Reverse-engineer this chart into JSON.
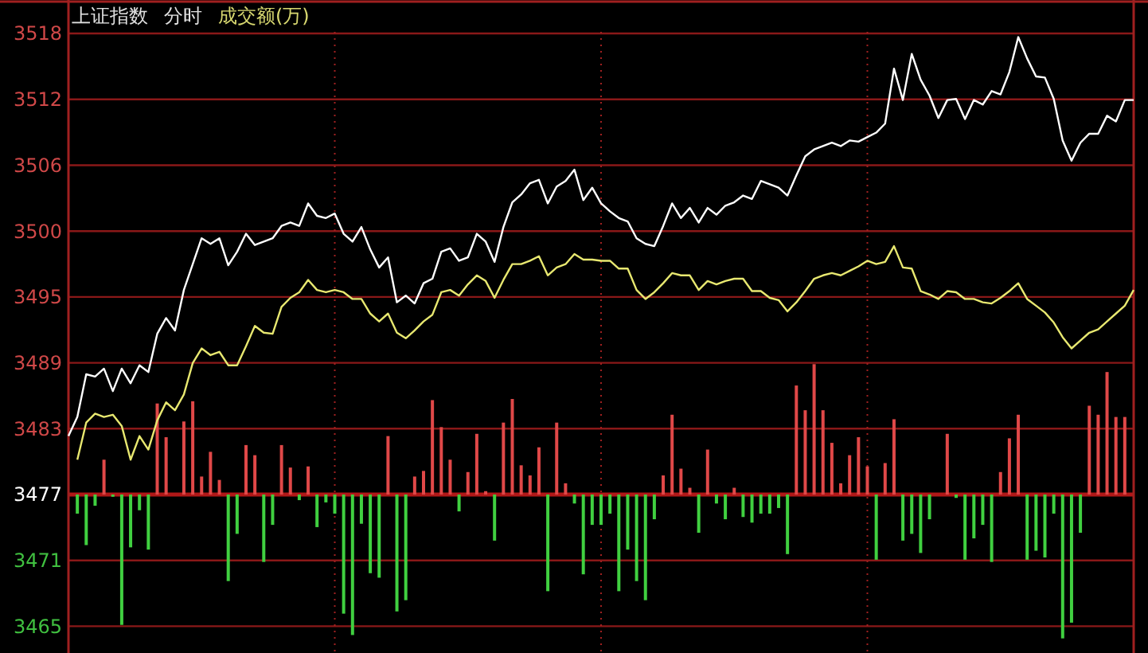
{
  "chart_data": {
    "type": "line",
    "title": "上证指数",
    "subtitle": "分时",
    "annotations": [
      "成交额(万)"
    ],
    "categories": [
      null,
      null,
      null,
      null,
      null,
      null,
      null,
      null,
      null,
      null,
      null,
      null,
      null,
      null,
      null,
      null,
      null,
      null,
      null,
      null,
      null,
      null,
      null,
      null,
      null,
      null,
      null,
      null,
      null,
      null,
      null,
      null,
      null,
      null,
      null,
      null,
      null,
      null,
      null,
      null,
      null,
      null,
      null,
      null,
      null,
      null,
      null,
      null,
      null,
      null,
      null,
      null,
      null,
      null,
      null,
      null,
      null,
      null,
      null,
      null,
      null,
      null,
      null,
      null,
      null,
      null,
      null,
      null,
      null,
      null,
      null,
      null,
      null,
      null,
      null,
      null,
      null,
      null,
      null,
      null,
      null,
      null,
      null,
      null,
      null,
      null,
      null,
      null,
      null,
      null,
      null,
      null,
      null,
      null,
      null,
      null,
      null,
      null,
      null,
      null,
      null,
      null,
      null,
      null,
      null,
      null,
      null,
      null,
      null,
      null,
      null,
      null,
      null,
      null,
      null,
      null,
      null,
      null,
      null,
      null,
      null
    ],
    "ylim": [
      3462.9,
      3521
    ],
    "yticks": [
      {
        "value": 3465.28,
        "label": "3465"
      },
      {
        "value": 3471.14,
        "label": "3471"
      },
      {
        "value": 3477,
        "label": "3477"
      },
      {
        "value": 3482.86,
        "label": "3483"
      },
      {
        "value": 3488.72,
        "label": "3489"
      },
      {
        "value": 3494.58,
        "label": "3495"
      },
      {
        "value": 3500.44,
        "label": "3500"
      },
      {
        "value": 3506.3,
        "label": "3506"
      },
      {
        "value": 3512.16,
        "label": "3512"
      },
      {
        "value": 3518.02,
        "label": "3518"
      }
    ],
    "tick_labels": "y",
    "grid": true,
    "ref_lines": [
      {
        "axis": "y",
        "value": 3477,
        "color": "#b01818"
      }
    ],
    "series": [
      {
        "type": "bar",
        "values": [
          null,
          -1.7,
          -4.5,
          -1.0,
          3.1,
          -0.2,
          -11.6,
          -4.7,
          -1.4,
          -4.9,
          8.1,
          5.1,
          null,
          6.5,
          8.3,
          1.6,
          3.8,
          1.3,
          -7.7,
          -3.5,
          4.4,
          3.5,
          -6.0,
          -2.7,
          4.4,
          2.4,
          -0.5,
          2.5,
          -2.9,
          -0.7,
          -1.7,
          -10.6,
          -12.5,
          -2.6,
          -7.0,
          -7.4,
          5.2,
          -10.4,
          -9.4,
          1.6,
          2.1,
          8.4,
          6.0,
          3.1,
          -1.5,
          2.0,
          5.4,
          0.3,
          -4.1,
          6.4,
          8.5,
          2.6,
          1.7,
          4.2,
          -8.6,
          6.4,
          1.0,
          -0.8,
          -7.1,
          -2.7,
          -2.7,
          -1.7,
          -8.6,
          -4.9,
          -7.7,
          -9.4,
          -2.2,
          1.7,
          7.1,
          2.3,
          0.6,
          -3.4,
          4.0,
          -0.8,
          -2.2,
          0.6,
          -2.0,
          -2.5,
          -1.7,
          -1.7,
          -1.2,
          -5.3,
          9.7,
          7.5,
          11.6,
          7.5,
          4.6,
          1.0,
          3.5,
          5.1,
          2.5,
          -5.8,
          2.8,
          6.7,
          -4.1,
          -3.5,
          -5.2,
          -2.2,
          null,
          5.4,
          -0.3,
          -5.8,
          -3.9,
          -2.7,
          -6.0,
          2.0,
          5.0,
          7.1,
          -5.8,
          -5.0,
          -5.6,
          -1.7,
          -12.8,
          -11.4,
          -3.4,
          7.9,
          7.1,
          10.9,
          6.9,
          6.9,
          null
        ],
        "colors": [
          null,
          "#40d040",
          "#40d040",
          "#40d040",
          "#e04848",
          "#40d040",
          "#40d040",
          "#40d040",
          "#40d040",
          "#40d040",
          "#e04848",
          "#e04848",
          null,
          "#e04848",
          "#e04848",
          "#e04848",
          "#e04848",
          "#e04848",
          "#40d040",
          "#40d040",
          "#e04848",
          "#e04848",
          "#40d040",
          "#40d040",
          "#e04848",
          "#e04848",
          "#40d040",
          "#e04848",
          "#40d040",
          "#40d040",
          "#40d040",
          "#40d040",
          "#40d040",
          "#40d040",
          "#40d040",
          "#40d040",
          "#e04848",
          "#40d040",
          "#40d040",
          "#e04848",
          "#e04848",
          "#e04848",
          "#e04848",
          "#e04848",
          "#40d040",
          "#e04848",
          "#e04848",
          "#e04848",
          "#40d040",
          "#e04848",
          "#e04848",
          "#e04848",
          "#e04848",
          "#e04848",
          "#40d040",
          "#e04848",
          "#e04848",
          "#40d040",
          "#40d040",
          "#40d040",
          "#40d040",
          "#40d040",
          "#40d040",
          "#40d040",
          "#40d040",
          "#40d040",
          "#40d040",
          "#e04848",
          "#e04848",
          "#e04848",
          "#e04848",
          "#40d040",
          "#e04848",
          "#40d040",
          "#40d040",
          "#e04848",
          "#40d040",
          "#40d040",
          "#40d040",
          "#40d040",
          "#40d040",
          "#40d040",
          "#e04848",
          "#e04848",
          "#e04848",
          "#e04848",
          "#e04848",
          "#e04848",
          "#e04848",
          "#e04848",
          "#e04848",
          "#40d040",
          "#e04848",
          "#e04848",
          "#40d040",
          "#40d040",
          "#40d040",
          "#40d040",
          null,
          "#e04848",
          "#40d040",
          "#40d040",
          "#40d040",
          "#40d040",
          "#40d040",
          "#e04848",
          "#e04848",
          "#e04848",
          "#40d040",
          "#40d040",
          "#40d040",
          "#40d040",
          "#40d040",
          "#40d040",
          "#40d040",
          "#e04848",
          "#e04848",
          "#e04848",
          "#e04848",
          "#e04848",
          null
        ],
        "base": [
          null,
          3477,
          3477,
          3477,
          3477,
          3477,
          3477,
          3477,
          3477,
          3477,
          3477,
          3477,
          null,
          3477,
          3477,
          3477,
          3477,
          3477,
          3477,
          3477,
          3477,
          3477,
          3477,
          3477,
          3477,
          3477,
          3477,
          3477,
          3477,
          3477,
          3477,
          3477,
          3477,
          3477,
          3477,
          3477,
          3477,
          3477,
          3477,
          3477,
          3477,
          3477,
          3477,
          3477,
          3477,
          3477,
          3477,
          3477,
          3477,
          3477,
          3477,
          3477,
          3477,
          3477,
          3477,
          3477,
          3477,
          3477,
          3477,
          3477,
          3477,
          3477,
          3477,
          3477,
          3477,
          3477,
          3477,
          3477,
          3477,
          3477,
          3477,
          3477,
          3477,
          3477,
          3477,
          3477,
          3477,
          3477,
          3477,
          3477,
          3477,
          3477,
          3477,
          3477,
          3477,
          3477,
          3477,
          3477,
          3477,
          3477,
          3477,
          3477,
          3477,
          3477,
          3477,
          3477,
          3477,
          3477,
          null,
          3477,
          3477,
          3477,
          3477,
          3477,
          3477,
          3477,
          3477,
          3477,
          3477,
          3477,
          3477,
          3477,
          3477,
          3477,
          3477,
          3477,
          3477,
          3477,
          3477,
          3477,
          null
        ]
      },
      {
        "color": "#ffffff",
        "values": [
          3482.2,
          3483.9,
          3487.7,
          3487.5,
          3488.2,
          3486.2,
          3488.2,
          3486.9,
          3488.5,
          3487.9,
          3491.3,
          3492.7,
          3491.6,
          3495.2,
          3497.5,
          3499.8,
          3499.3,
          3499.8,
          3497.4,
          3498.6,
          3500.2,
          3499.2,
          3499.5,
          3499.8,
          3500.9,
          3501.2,
          3500.9,
          3502.9,
          3501.8,
          3501.6,
          3502.0,
          3500.2,
          3499.5,
          3500.8,
          3498.8,
          3497.2,
          3498.1,
          3494.1,
          3494.7,
          3494.0,
          3495.8,
          3496.2,
          3498.6,
          3498.9,
          3497.8,
          3498.1,
          3500.2,
          3499.5,
          3497.7,
          3500.8,
          3503.0,
          3503.7,
          3504.7,
          3505.0,
          3502.9,
          3504.4,
          3504.9,
          3505.9,
          3503.2,
          3504.3,
          3502.9,
          3502.2,
          3501.6,
          3501.3,
          3499.8,
          3499.3,
          3499.1,
          3500.9,
          3502.9,
          3501.6,
          3502.5,
          3501.2,
          3502.5,
          3501.9,
          3502.7,
          3503.0,
          3503.6,
          3503.3,
          3504.9,
          3504.6,
          3504.3,
          3503.6,
          3505.4,
          3507.1,
          3507.7,
          3508.0,
          3508.3,
          3508.0,
          3508.5,
          3508.4,
          3508.8,
          3509.2,
          3510.0,
          3514.9,
          3512.1,
          3516.2,
          3513.9,
          3512.5,
          3510.5,
          3512.1,
          3512.2,
          3510.4,
          3512.1,
          3511.7,
          3512.9,
          3512.6,
          3514.6,
          3517.7,
          3515.8,
          3514.2,
          3514.1,
          3512.2,
          3508.5,
          3506.7,
          3508.3,
          3509.1,
          3509.1,
          3510.7,
          3510.2,
          3512.1,
          3512.1
        ]
      },
      {
        "color": "#e8e870",
        "values": [
          null,
          3480.1,
          3483.4,
          3484.2,
          3483.9,
          3484.1,
          3483.1,
          3480.1,
          3482.2,
          3481.0,
          3483.6,
          3485.2,
          3484.5,
          3485.9,
          3488.7,
          3490.0,
          3489.4,
          3489.7,
          3488.5,
          3488.5,
          3490.2,
          3492.0,
          3491.4,
          3491.3,
          3493.7,
          3494.5,
          3495.0,
          3496.1,
          3495.2,
          3495.0,
          3495.2,
          3495.0,
          3494.4,
          3494.4,
          3493.1,
          3492.4,
          3493.1,
          3491.4,
          3490.9,
          3491.6,
          3492.4,
          3493.0,
          3495.0,
          3495.2,
          3494.7,
          3495.7,
          3496.5,
          3496.0,
          3494.5,
          3496.1,
          3497.5,
          3497.5,
          3497.8,
          3498.2,
          3496.5,
          3497.2,
          3497.5,
          3498.4,
          3497.9,
          3497.9,
          3497.8,
          3497.8,
          3497.1,
          3497.1,
          3495.2,
          3494.4,
          3495.0,
          3495.8,
          3496.7,
          3496.5,
          3496.5,
          3495.2,
          3496.0,
          3495.7,
          3496.0,
          3496.2,
          3496.2,
          3495.1,
          3495.1,
          3494.5,
          3494.3,
          3493.3,
          3494.1,
          3495.1,
          3496.2,
          3496.5,
          3496.7,
          3496.5,
          3496.9,
          3497.3,
          3497.8,
          3497.5,
          3497.7,
          3499.1,
          3497.2,
          3497.1,
          3495.1,
          3494.8,
          3494.4,
          3495.1,
          3495.0,
          3494.4,
          3494.4,
          3494.1,
          3494.0,
          3494.5,
          3495.1,
          3495.8,
          3494.4,
          3493.8,
          3493.2,
          3492.3,
          3491.0,
          3490.0,
          3490.7,
          3491.4,
          3491.7,
          3492.4,
          3493.1,
          3493.8,
          3495.2
        ]
      }
    ]
  }
}
